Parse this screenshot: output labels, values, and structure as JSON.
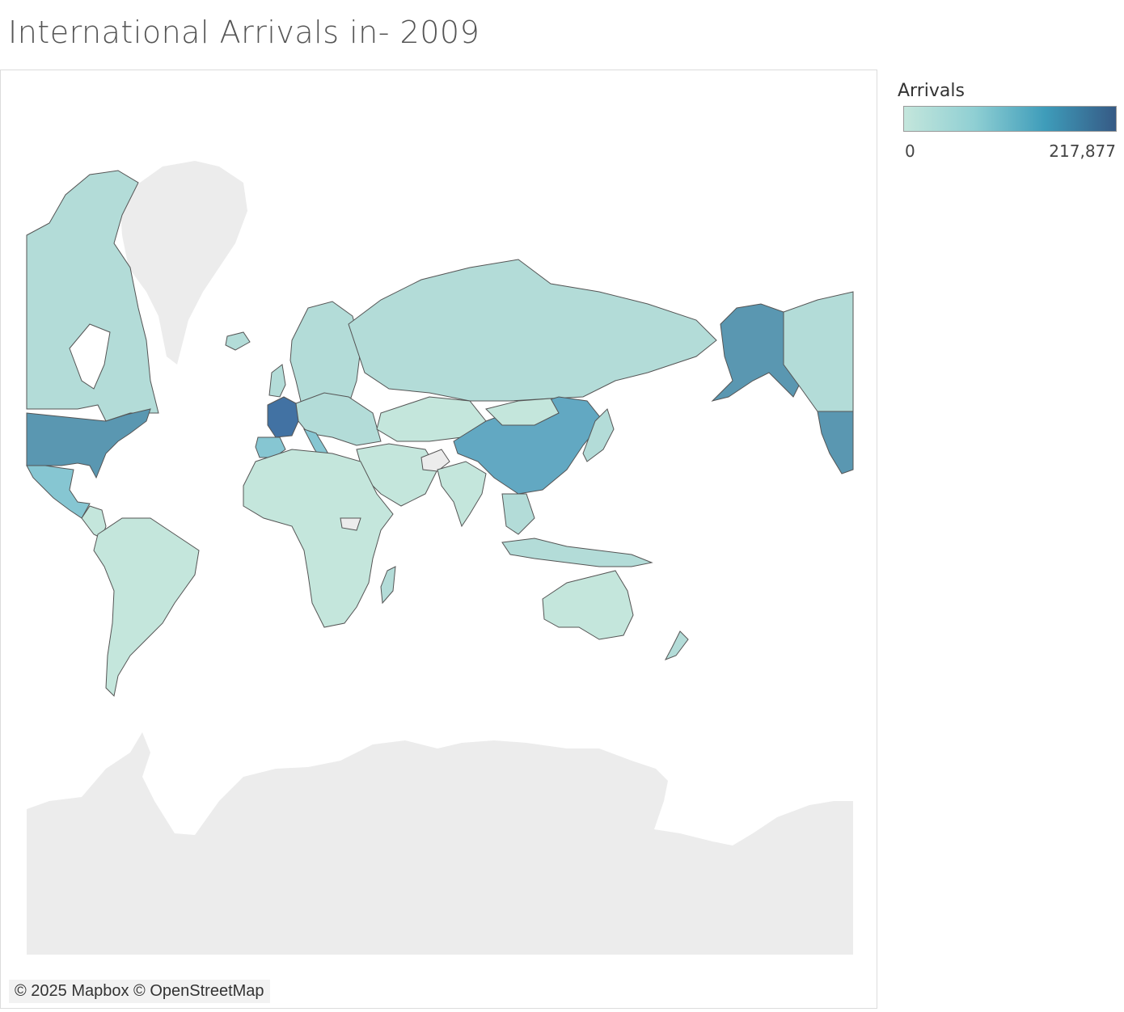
{
  "title": "International Arrivals in- 2009",
  "attribution": "© 2025 Mapbox © OpenStreetMap",
  "legend": {
    "title": "Arrivals",
    "min_label": "0",
    "max_label": "217,877",
    "min": 0,
    "max": 217877,
    "colors": [
      "#c4e6dc",
      "#8fcfd3",
      "#3e9cba",
      "#365a85"
    ]
  },
  "colors": {
    "ocean": "#ffffff",
    "no_data": "#ececec",
    "border": "#555555",
    "low": "#b3dcd8",
    "low2": "#c4e6dc",
    "mid": "#86c6d2",
    "high": "#62a8c2",
    "higher": "#5a97b1",
    "top": "#4272a3"
  }
}
